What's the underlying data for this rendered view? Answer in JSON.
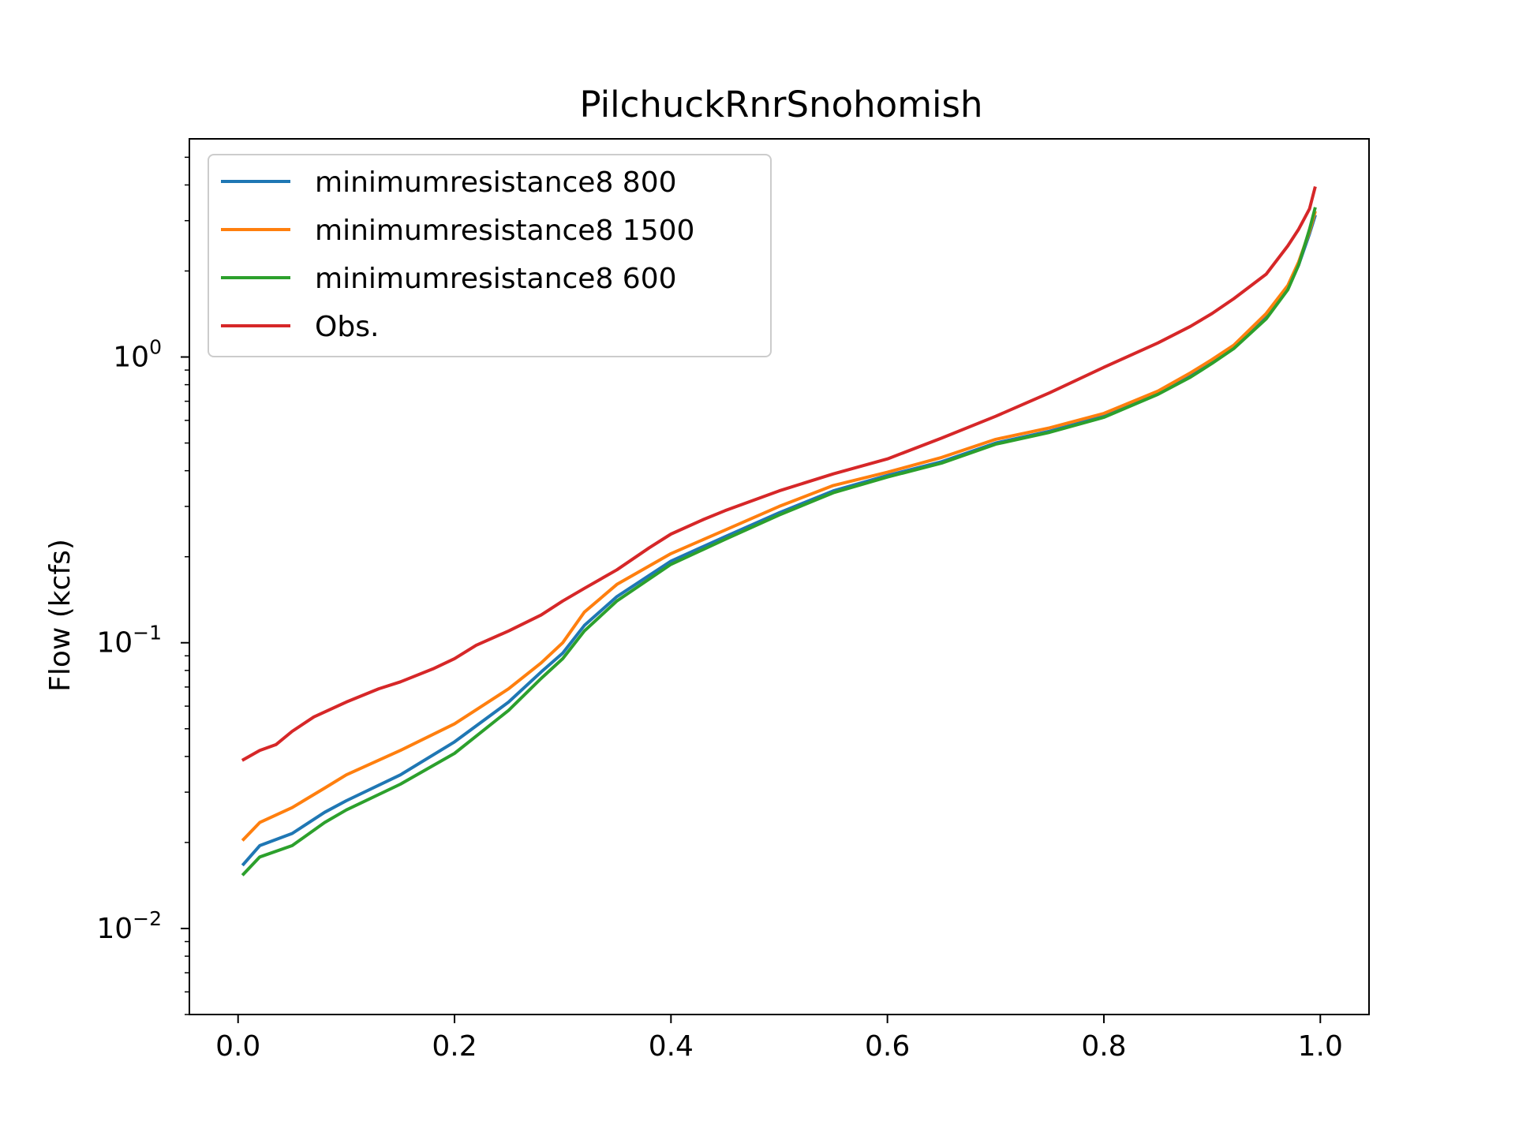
{
  "chart_data": {
    "type": "line",
    "title": "PilchuckRnrSnohomish",
    "xlabel": "",
    "ylabel": "Flow (kcfs)",
    "yscale": "log",
    "xlim": [
      -0.045,
      1.045
    ],
    "ylim": [
      0.005,
      5.8
    ],
    "x_ticks": [
      {
        "value": 0.0,
        "label": "0.0"
      },
      {
        "value": 0.2,
        "label": "0.2"
      },
      {
        "value": 0.4,
        "label": "0.4"
      },
      {
        "value": 0.6,
        "label": "0.6"
      },
      {
        "value": 0.8,
        "label": "0.8"
      },
      {
        "value": 1.0,
        "label": "1.0"
      }
    ],
    "y_ticks": [
      {
        "value": 0.01,
        "base": "10",
        "exp": "−2"
      },
      {
        "value": 0.1,
        "base": "10",
        "exp": "−1"
      },
      {
        "value": 1,
        "base": "10",
        "exp": "0"
      }
    ],
    "grid": false,
    "legend_position": "top-left",
    "series": [
      {
        "name": "minimumresistance8 800",
        "color": "#1f77b4",
        "points": [
          [
            0.005,
            0.0168
          ],
          [
            0.02,
            0.0195
          ],
          [
            0.05,
            0.0215
          ],
          [
            0.08,
            0.0255
          ],
          [
            0.1,
            0.028
          ],
          [
            0.15,
            0.0345
          ],
          [
            0.2,
            0.045
          ],
          [
            0.25,
            0.062
          ],
          [
            0.28,
            0.079
          ],
          [
            0.3,
            0.092
          ],
          [
            0.32,
            0.115
          ],
          [
            0.35,
            0.145
          ],
          [
            0.4,
            0.193
          ],
          [
            0.45,
            0.235
          ],
          [
            0.5,
            0.285
          ],
          [
            0.55,
            0.34
          ],
          [
            0.6,
            0.385
          ],
          [
            0.65,
            0.43
          ],
          [
            0.7,
            0.5
          ],
          [
            0.75,
            0.55
          ],
          [
            0.8,
            0.62
          ],
          [
            0.85,
            0.75
          ],
          [
            0.88,
            0.86
          ],
          [
            0.9,
            0.96
          ],
          [
            0.92,
            1.08
          ],
          [
            0.95,
            1.38
          ],
          [
            0.97,
            1.73
          ],
          [
            0.98,
            2.1
          ],
          [
            0.99,
            2.7
          ],
          [
            0.995,
            3.1
          ]
        ]
      },
      {
        "name": "minimumresistance8 1500",
        "color": "#ff7f0e",
        "points": [
          [
            0.005,
            0.0205
          ],
          [
            0.02,
            0.0235
          ],
          [
            0.05,
            0.0265
          ],
          [
            0.08,
            0.031
          ],
          [
            0.1,
            0.0345
          ],
          [
            0.15,
            0.042
          ],
          [
            0.2,
            0.052
          ],
          [
            0.25,
            0.069
          ],
          [
            0.28,
            0.085
          ],
          [
            0.3,
            0.1
          ],
          [
            0.32,
            0.128
          ],
          [
            0.35,
            0.16
          ],
          [
            0.4,
            0.205
          ],
          [
            0.45,
            0.248
          ],
          [
            0.5,
            0.3
          ],
          [
            0.55,
            0.355
          ],
          [
            0.6,
            0.395
          ],
          [
            0.65,
            0.445
          ],
          [
            0.7,
            0.515
          ],
          [
            0.75,
            0.565
          ],
          [
            0.8,
            0.635
          ],
          [
            0.85,
            0.76
          ],
          [
            0.88,
            0.88
          ],
          [
            0.9,
            0.98
          ],
          [
            0.92,
            1.1
          ],
          [
            0.95,
            1.42
          ],
          [
            0.97,
            1.78
          ],
          [
            0.98,
            2.15
          ],
          [
            0.99,
            2.75
          ],
          [
            0.995,
            3.2
          ]
        ]
      },
      {
        "name": "minimumresistance8 600",
        "color": "#2ca02c",
        "points": [
          [
            0.005,
            0.0155
          ],
          [
            0.02,
            0.0178
          ],
          [
            0.05,
            0.0195
          ],
          [
            0.08,
            0.0235
          ],
          [
            0.1,
            0.026
          ],
          [
            0.15,
            0.032
          ],
          [
            0.2,
            0.041
          ],
          [
            0.25,
            0.058
          ],
          [
            0.28,
            0.075
          ],
          [
            0.3,
            0.088
          ],
          [
            0.32,
            0.11
          ],
          [
            0.35,
            0.14
          ],
          [
            0.4,
            0.188
          ],
          [
            0.45,
            0.23
          ],
          [
            0.5,
            0.28
          ],
          [
            0.55,
            0.335
          ],
          [
            0.6,
            0.38
          ],
          [
            0.65,
            0.425
          ],
          [
            0.7,
            0.495
          ],
          [
            0.75,
            0.545
          ],
          [
            0.8,
            0.615
          ],
          [
            0.85,
            0.74
          ],
          [
            0.88,
            0.85
          ],
          [
            0.9,
            0.95
          ],
          [
            0.92,
            1.07
          ],
          [
            0.95,
            1.36
          ],
          [
            0.97,
            1.72
          ],
          [
            0.98,
            2.1
          ],
          [
            0.99,
            2.8
          ],
          [
            0.995,
            3.3
          ]
        ]
      },
      {
        "name": "Obs.",
        "color": "#d62728",
        "points": [
          [
            0.005,
            0.039
          ],
          [
            0.02,
            0.042
          ],
          [
            0.035,
            0.044
          ],
          [
            0.05,
            0.049
          ],
          [
            0.07,
            0.055
          ],
          [
            0.1,
            0.062
          ],
          [
            0.13,
            0.069
          ],
          [
            0.15,
            0.073
          ],
          [
            0.18,
            0.081
          ],
          [
            0.2,
            0.088
          ],
          [
            0.22,
            0.098
          ],
          [
            0.25,
            0.11
          ],
          [
            0.28,
            0.125
          ],
          [
            0.3,
            0.14
          ],
          [
            0.32,
            0.155
          ],
          [
            0.35,
            0.18
          ],
          [
            0.38,
            0.215
          ],
          [
            0.4,
            0.24
          ],
          [
            0.43,
            0.27
          ],
          [
            0.45,
            0.29
          ],
          [
            0.5,
            0.34
          ],
          [
            0.55,
            0.39
          ],
          [
            0.6,
            0.44
          ],
          [
            0.65,
            0.52
          ],
          [
            0.7,
            0.62
          ],
          [
            0.75,
            0.75
          ],
          [
            0.8,
            0.92
          ],
          [
            0.85,
            1.12
          ],
          [
            0.88,
            1.28
          ],
          [
            0.9,
            1.42
          ],
          [
            0.92,
            1.6
          ],
          [
            0.95,
            1.95
          ],
          [
            0.97,
            2.45
          ],
          [
            0.98,
            2.8
          ],
          [
            0.99,
            3.3
          ],
          [
            0.995,
            3.9
          ]
        ]
      }
    ]
  }
}
